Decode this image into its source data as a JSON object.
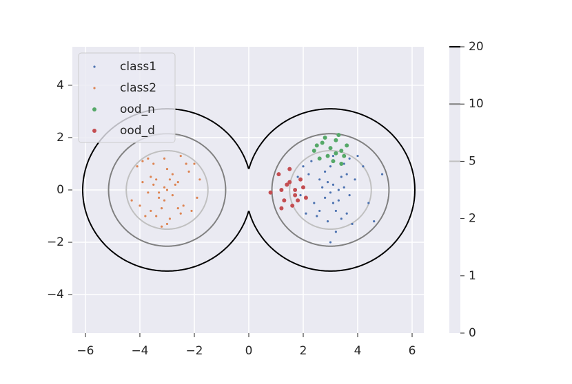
{
  "chart_data": {
    "type": "scatter",
    "xlim": [
      -6.48,
      6.43
    ],
    "ylim": [
      -5.47,
      5.47
    ],
    "xticks": [
      {
        "value": -6,
        "label": "−6"
      },
      {
        "value": -4,
        "label": "−4"
      },
      {
        "value": -2,
        "label": "−2"
      },
      0,
      2,
      4,
      6
    ],
    "yticks": [
      {
        "value": -4,
        "label": "−4"
      },
      {
        "value": -2,
        "label": "−2"
      },
      0,
      2,
      4
    ],
    "grid": true,
    "legend": "upper left",
    "series": [
      {
        "name": "class1",
        "color": "#4c72b0",
        "size": 1.6,
        "x": [
          3.1,
          2.8,
          3.4,
          2.6,
          3.2,
          3.7,
          2.4,
          3.0,
          3.5,
          2.2,
          3.9,
          2.9,
          3.3,
          2.7,
          3.6,
          2.5,
          3.0,
          4.2,
          1.9,
          3.8,
          2.3,
          3.1,
          4.4,
          3.2,
          2.0,
          3.5,
          2.8,
          3.3,
          2.9,
          3.1,
          4.0,
          1.8,
          3.6,
          2.6,
          3.0,
          4.9,
          3.4,
          2.1,
          4.6,
          3.7
        ],
        "values": [
          0.2,
          -0.3,
          0.5,
          0.4,
          -0.8,
          -0.2,
          -0.5,
          0.9,
          1.0,
          0.6,
          0.4,
          -1.2,
          -0.4,
          0.1,
          -0.9,
          -1.0,
          -0.1,
          0.9,
          -0.2,
          -1.3,
          1.1,
          1.3,
          -0.5,
          -1.6,
          0.9,
          0.1,
          0.7,
          0.0,
          0.3,
          -0.5,
          1.3,
          0.5,
          0.6,
          -0.8,
          -2.0,
          0.6,
          -1.1,
          -0.9,
          -1.2,
          1.2
        ]
      },
      {
        "name": "class2",
        "color": "#dd8452",
        "size": 1.6,
        "x": [
          -3.1,
          -2.8,
          -3.4,
          -2.6,
          -3.2,
          -3.7,
          -2.4,
          -3.0,
          -3.5,
          -2.2,
          -3.9,
          -2.9,
          -3.3,
          -2.7,
          -3.6,
          -2.5,
          -3.0,
          -4.1,
          -1.9,
          -3.8,
          -2.3,
          -3.1,
          -4.3,
          -3.2,
          -2.0,
          -3.5,
          -2.8,
          -3.3,
          -2.9,
          -3.1,
          -3.9,
          -1.8,
          -3.6,
          -2.6,
          -3.0,
          -4.0,
          -3.4,
          -2.1,
          -2.5,
          -3.7
        ],
        "values": [
          0.1,
          -0.2,
          0.4,
          0.3,
          -0.7,
          -0.1,
          -0.6,
          0.8,
          1.0,
          0.7,
          0.3,
          -1.1,
          -0.3,
          0.2,
          -0.8,
          -0.9,
          0.0,
          0.9,
          -0.3,
          -1.0,
          1.0,
          1.2,
          -0.4,
          -1.4,
          1.0,
          0.2,
          0.6,
          -0.1,
          0.4,
          -0.4,
          1.1,
          0.4,
          0.5,
          -0.7,
          -1.3,
          -0.6,
          -1.0,
          -0.8,
          1.3,
          1.2
        ]
      },
      {
        "name": "ood_n",
        "color": "#55a868",
        "size": 3,
        "x": [
          2.4,
          2.7,
          3.0,
          3.2,
          3.4,
          2.9,
          3.3,
          3.6,
          2.6,
          3.1,
          3.5,
          2.8,
          3.2,
          2.5,
          3.4
        ],
        "values": [
          1.5,
          1.8,
          1.6,
          1.9,
          1.5,
          1.3,
          2.1,
          1.7,
          1.2,
          1.1,
          1.3,
          2.0,
          1.4,
          1.7,
          1.0
        ]
      },
      {
        "name": "ood_d",
        "color": "#c44e52",
        "size": 3,
        "x": [
          1.2,
          1.5,
          1.7,
          1.3,
          2.0,
          1.1,
          1.6,
          1.9,
          1.4,
          0.8,
          1.8,
          2.1,
          1.5,
          1.2,
          1.7
        ],
        "values": [
          0.0,
          0.3,
          -0.2,
          -0.4,
          0.1,
          0.6,
          -0.6,
          0.4,
          0.2,
          -0.1,
          -0.4,
          -0.3,
          0.8,
          -0.7,
          0.0
        ]
      }
    ],
    "centers": [
      [
        -3,
        0
      ],
      [
        3,
        0
      ]
    ],
    "contours": [
      {
        "level": 20,
        "radius": 3.1,
        "color": "#000000"
      },
      {
        "level": 10,
        "radius": 2.15,
        "color": "#808080"
      },
      {
        "level": 5,
        "radius": 1.5,
        "color": "#c0c0c0"
      }
    ],
    "colorbar_ticks": [
      0,
      1,
      2,
      5,
      10,
      20
    ]
  }
}
